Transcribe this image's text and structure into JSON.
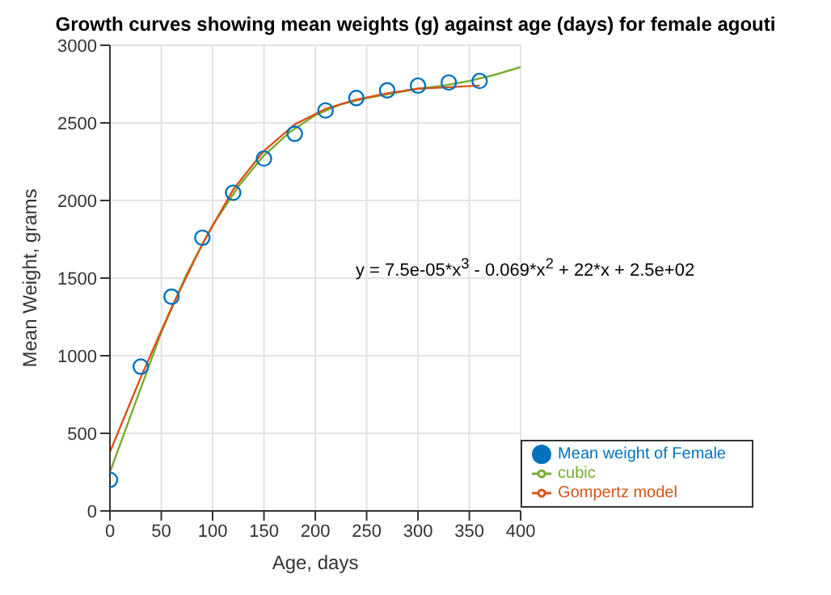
{
  "chart_data": {
    "type": "line",
    "title": "Growth curves showing mean weights (g) against age (days) for female agouti",
    "xlabel": "Age, days",
    "ylabel": "Mean Weight, grams",
    "xlim": [
      0,
      400
    ],
    "xticks": [
      0,
      50,
      100,
      150,
      200,
      250,
      300,
      350,
      400
    ],
    "ylim": [
      0,
      3000
    ],
    "yticks": [
      0,
      500,
      1000,
      1500,
      2000,
      2500,
      3000
    ],
    "grid": true,
    "legend": "bottom right",
    "annotations": [
      "y = 7.5e-05*x$^{3}$ - 0.069*x$^{2}$ + 22*x + 2.5e+02"
    ],
    "series": [
      {
        "name": "Mean weight of Female",
        "type": "scatter",
        "marker": "circle",
        "color": "#0072bd",
        "x": [
          0,
          30,
          60,
          90,
          120,
          150,
          180,
          210,
          240,
          270,
          300,
          330,
          360
        ],
        "values": [
          200,
          930,
          1380,
          1760,
          2050,
          2270,
          2430,
          2580,
          2660,
          2710,
          2740,
          2760,
          2770
        ]
      },
      {
        "name": "cubic",
        "type": "line",
        "marker": "none",
        "color": "#77ac30",
        "x": [
          0,
          25,
          50,
          75,
          100,
          125,
          150,
          175,
          200,
          225,
          250,
          275,
          300,
          325,
          350,
          375,
          400
        ],
        "values": [
          250,
          700,
          1150,
          1530,
          1840,
          2090,
          2290,
          2440,
          2550,
          2620,
          2660,
          2690,
          2720,
          2740,
          2770,
          2810,
          2860
        ]
      },
      {
        "name": "Gompertz model",
        "type": "line",
        "marker": "none",
        "color": "#d95319",
        "x": [
          0,
          30,
          60,
          90,
          120,
          150,
          180,
          210,
          240,
          270,
          300,
          330,
          360
        ],
        "values": [
          380,
          860,
          1310,
          1720,
          2070,
          2320,
          2490,
          2590,
          2650,
          2690,
          2720,
          2730,
          2740
        ]
      }
    ]
  }
}
